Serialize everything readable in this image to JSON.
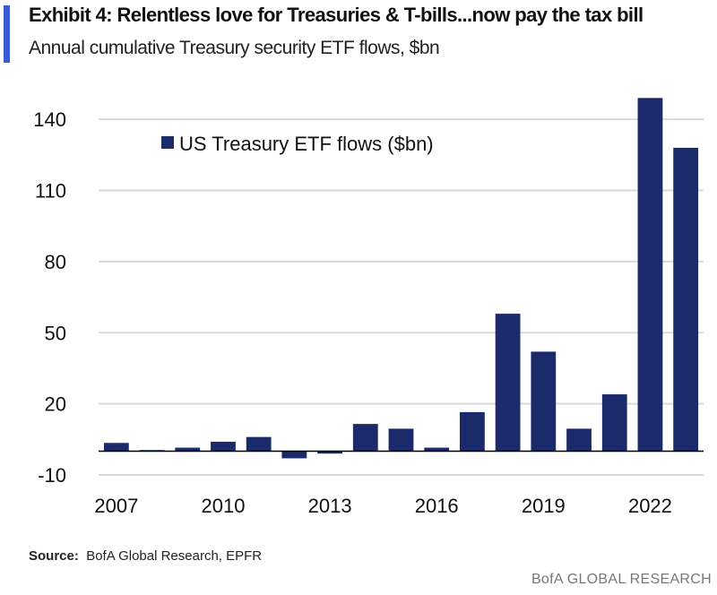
{
  "header": {
    "title": "Exhibit 4: Relentless love for Treasuries & T-bills...now pay the tax bill",
    "subtitle": "Annual cumulative Treasury security ETF flows, $bn"
  },
  "footer": {
    "source_label": "Source:",
    "source_text": "BofA Global Research, EPFR",
    "brand": "BofA GLOBAL RESEARCH"
  },
  "colors": {
    "bar": "#1b2a6b",
    "accent": "#3b5bd6",
    "grid": "#d9d9d9"
  },
  "chart_data": {
    "type": "bar",
    "title": "",
    "xlabel": "",
    "ylabel": "",
    "categories": [
      "2007",
      "2008",
      "2009",
      "2010",
      "2011",
      "2012",
      "2013",
      "2014",
      "2015",
      "2016",
      "2017",
      "2018",
      "2019",
      "2020",
      "2021",
      "2022",
      "2023"
    ],
    "x_tick_labels": [
      "2007",
      "2010",
      "2013",
      "2016",
      "2019",
      "2022"
    ],
    "y_ticks": [
      -10,
      20,
      50,
      80,
      110,
      140
    ],
    "ylim": [
      -10,
      148
    ],
    "legend": "top-left",
    "grid": "horizontal",
    "series": [
      {
        "name": "US Treasury ETF flows ($bn)",
        "values": [
          3.5,
          0.5,
          1.5,
          4,
          6,
          -3,
          -1,
          11.5,
          9.5,
          1.5,
          16.5,
          58,
          42,
          9.5,
          24,
          149,
          128
        ]
      }
    ]
  }
}
